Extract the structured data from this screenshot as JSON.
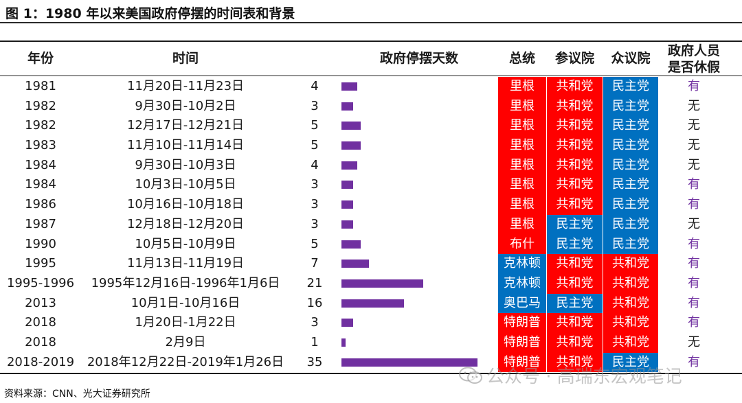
{
  "title": "图 1：1980 年以来美国政府停摆的时间表和背景",
  "headers": {
    "year": "年份",
    "time": "时间",
    "days": "政府停摆天数",
    "president": "总统",
    "senate": "参议院",
    "house": "众议院",
    "leave_line1": "政府人员",
    "leave_line2": "是否休假"
  },
  "colors": {
    "republican": "#ff0000",
    "democrat": "#0070c0",
    "bar": "#7030a0",
    "leave_yes": "#7030a0"
  },
  "parties": {
    "republican": "共和党",
    "democrat": "民主党"
  },
  "rows": [
    {
      "year": "1981",
      "time": "11月20日-11月23日",
      "days": "4",
      "days_value": 4,
      "president": "里根",
      "president_party": "republican",
      "senate": "共和党",
      "house": "民主党",
      "leave": "有"
    },
    {
      "year": "1982",
      "time": "9月30日-10月2日",
      "days": "3",
      "days_value": 3,
      "president": "里根",
      "president_party": "republican",
      "senate": "共和党",
      "house": "民主党",
      "leave": "无"
    },
    {
      "year": "1982",
      "time": "12月17日-12月21日",
      "days": "5",
      "days_value": 5,
      "president": "里根",
      "president_party": "republican",
      "senate": "共和党",
      "house": "民主党",
      "leave": "无"
    },
    {
      "year": "1983",
      "time": "11月10日-11月14日",
      "days": "5",
      "days_value": 5,
      "president": "里根",
      "president_party": "republican",
      "senate": "共和党",
      "house": "民主党",
      "leave": "无"
    },
    {
      "year": "1984",
      "time": "9月30日-10月3日",
      "days": "4",
      "days_value": 4,
      "president": "里根",
      "president_party": "republican",
      "senate": "共和党",
      "house": "民主党",
      "leave": "无"
    },
    {
      "year": "1984",
      "time": "10月3日-10月5日",
      "days": "3",
      "days_value": 3,
      "president": "里根",
      "president_party": "republican",
      "senate": "共和党",
      "house": "民主党",
      "leave": "有"
    },
    {
      "year": "1986",
      "time": "10月16日-10月18日",
      "days": "3",
      "days_value": 3,
      "president": "里根",
      "president_party": "republican",
      "senate": "共和党",
      "house": "民主党",
      "leave": "有"
    },
    {
      "year": "1987",
      "time": "12月18日-12月20日",
      "days": "3",
      "days_value": 3,
      "president": "里根",
      "president_party": "republican",
      "senate": "民主党",
      "house": "民主党",
      "leave": "无"
    },
    {
      "year": "1990",
      "time": "10月5日-10月9日",
      "days": "5",
      "days_value": 5,
      "president": "布什",
      "president_party": "republican",
      "senate": "民主党",
      "house": "民主党",
      "leave": "有"
    },
    {
      "year": "1995",
      "time": "11月13日-11月19日",
      "days": "7",
      "days_value": 7,
      "president": "克林顿",
      "president_party": "democrat",
      "senate": "共和党",
      "house": "共和党",
      "leave": "有"
    },
    {
      "year": "1995-1996",
      "time": "1995年12月16日-1996年1月6日",
      "days": "21",
      "days_value": 21,
      "president": "克林顿",
      "president_party": "democrat",
      "senate": "共和党",
      "house": "共和党",
      "leave": "有"
    },
    {
      "year": "2013",
      "time": "10月1日-10月16日",
      "days": "16",
      "days_value": 16,
      "president": "奥巴马",
      "president_party": "democrat",
      "senate": "民主党",
      "house": "共和党",
      "leave": "有"
    },
    {
      "year": "2018",
      "time": "1月20日-1月22日",
      "days": "3",
      "days_value": 3,
      "president": "特朗普",
      "president_party": "republican",
      "senate": "共和党",
      "house": "共和党",
      "leave": "有"
    },
    {
      "year": "2018",
      "time": "2月9日",
      "days": "1",
      "days_value": 1,
      "president": "特朗普",
      "president_party": "republican",
      "senate": "共和党",
      "house": "共和党",
      "leave": "无"
    },
    {
      "year": "2018-2019",
      "time": "2018年12月22日-2019年1月26日",
      "days": "35",
      "days_value": 35,
      "president": "特朗普",
      "president_party": "republican",
      "senate": "共和党",
      "house": "民主党",
      "leave": "有"
    }
  ],
  "source": "资料来源：CNN、光大证券研究所",
  "watermark": "公众号 · 高瑞东宏观笔记"
}
